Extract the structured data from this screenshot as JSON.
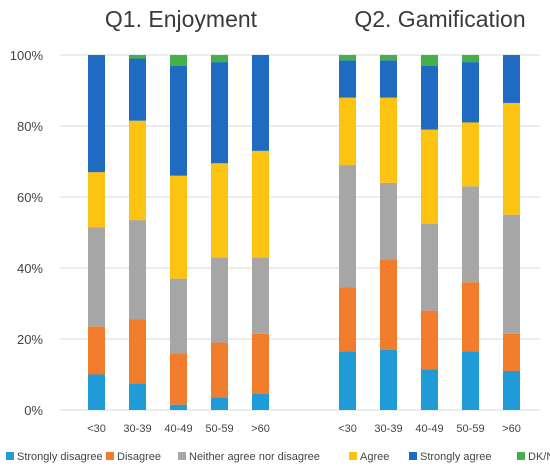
{
  "chart_data": {
    "type": "bar",
    "stacked": true,
    "percent_stacked": true,
    "y_tick_labels": [
      "0%",
      "20%",
      "40%",
      "60%",
      "80%",
      "100%"
    ],
    "ylim": [
      0,
      100
    ],
    "grid": true,
    "legend_position": "bottom",
    "legend": [
      {
        "name": "Strongly disagree",
        "color": "#1f9bd7"
      },
      {
        "name": "Disagree",
        "color": "#f07c2c"
      },
      {
        "name": "Neither agree nor disagree",
        "color": "#a6a6a6"
      },
      {
        "name": "Agree",
        "color": "#fcc312"
      },
      {
        "name": "Strongly agree",
        "color": "#1e6bc1"
      },
      {
        "name": "DK/NA",
        "color": "#43b04a"
      }
    ],
    "panels": [
      {
        "title": "Q1. Enjoyment",
        "categories": [
          "<30",
          "30-39",
          "40-49",
          "50-59",
          ">60"
        ],
        "series": [
          {
            "name": "Strongly disagree",
            "values": [
              10,
              7.5,
              1.5,
              3.5,
              4.5
            ]
          },
          {
            "name": "Disagree",
            "values": [
              13.5,
              18,
              14.5,
              15.5,
              17
            ]
          },
          {
            "name": "Neither agree nor disagree",
            "values": [
              28,
              28,
              21,
              24,
              21.5
            ]
          },
          {
            "name": "Agree",
            "values": [
              15.5,
              28,
              29,
              26.5,
              30
            ]
          },
          {
            "name": "Strongly agree",
            "values": [
              33,
              17.5,
              31,
              28.5,
              27
            ]
          },
          {
            "name": "DK/NA",
            "values": [
              0,
              1,
              3,
              2,
              0
            ]
          }
        ]
      },
      {
        "title": "Q2. Gamification",
        "categories": [
          "<30",
          "30-39",
          "40-49",
          "50-59",
          ">60"
        ],
        "series": [
          {
            "name": "Strongly disagree",
            "values": [
              16.5,
              17,
              11.5,
              16.5,
              11
            ]
          },
          {
            "name": "Disagree",
            "values": [
              18,
              25.5,
              16.5,
              19.5,
              10.5
            ]
          },
          {
            "name": "Neither agree nor disagree",
            "values": [
              34.5,
              21.5,
              24.5,
              27,
              33.5
            ]
          },
          {
            "name": "Agree",
            "values": [
              19,
              24,
              26.5,
              18,
              31.5
            ]
          },
          {
            "name": "Strongly agree",
            "values": [
              10.5,
              10.5,
              18,
              17,
              13.5
            ]
          },
          {
            "name": "DK/NA",
            "values": [
              1.5,
              1.5,
              3,
              2,
              0
            ]
          }
        ]
      }
    ]
  }
}
